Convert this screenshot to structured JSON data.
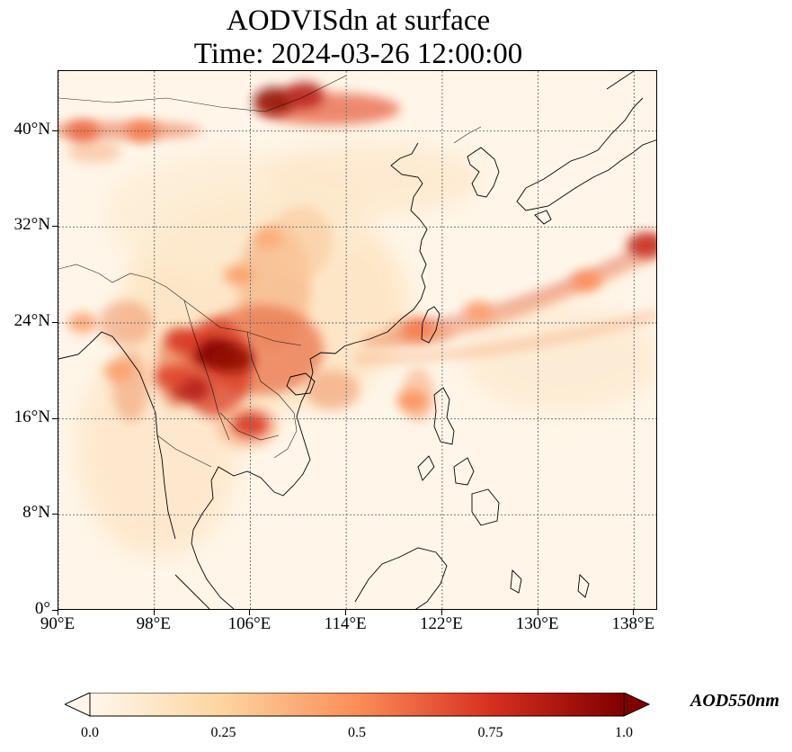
{
  "title": "AODVISdn at surface",
  "subtitle": "Time: 2024-03-26 12:00:00",
  "map": {
    "region": {
      "lon_min": 90,
      "lon_max": 140,
      "lat_min": 0,
      "lat_max": 45
    },
    "lat_labels": [
      "0°",
      "8°N",
      "16°N",
      "24°N",
      "32°N",
      "40°N"
    ],
    "lat_values": [
      0,
      8,
      16,
      24,
      32,
      40
    ],
    "lon_labels": [
      "90°E",
      "98°E",
      "106°E",
      "114°E",
      "122°E",
      "130°E",
      "138°E"
    ],
    "lon_values": [
      90,
      98,
      106,
      114,
      122,
      130,
      138
    ],
    "gridlines": true,
    "aod_hotspots": [
      {
        "lon": 103,
        "lat": 21.5,
        "aod": 1.0
      },
      {
        "lon": 104.5,
        "lat": 21.0,
        "aod": 0.95
      },
      {
        "lon": 101,
        "lat": 18.5,
        "aod": 0.85
      },
      {
        "lon": 99.5,
        "lat": 19.5,
        "aod": 0.7
      },
      {
        "lon": 106,
        "lat": 15.5,
        "aod": 0.75
      },
      {
        "lon": 100.5,
        "lat": 22.5,
        "aod": 0.75
      },
      {
        "lon": 108,
        "lat": 42.5,
        "aod": 0.95
      },
      {
        "lon": 110.5,
        "lat": 43.0,
        "aod": 0.85
      },
      {
        "lon": 105,
        "lat": 28,
        "aod": 0.45
      },
      {
        "lon": 107.5,
        "lat": 31,
        "aod": 0.4
      },
      {
        "lon": 92,
        "lat": 40,
        "aod": 0.6
      },
      {
        "lon": 97,
        "lat": 40,
        "aod": 0.55
      },
      {
        "lon": 125,
        "lat": 25,
        "aod": 0.45
      },
      {
        "lon": 134,
        "lat": 27.5,
        "aod": 0.5
      },
      {
        "lon": 139,
        "lat": 30.5,
        "aod": 0.8
      },
      {
        "lon": 120,
        "lat": 23.5,
        "aod": 0.55
      },
      {
        "lon": 119.5,
        "lat": 17.5,
        "aod": 0.5
      },
      {
        "lon": 92,
        "lat": 24,
        "aod": 0.45
      },
      {
        "lon": 95,
        "lat": 20,
        "aod": 0.45
      }
    ]
  },
  "colorbar": {
    "label": "AOD550nm",
    "ticks": [
      "0.0",
      "0.25",
      "0.5",
      "0.75",
      "1.0"
    ],
    "range": [
      0.0,
      1.0
    ],
    "colormap": "OrRd",
    "colors": [
      "#fff7ec",
      "#fdd49e",
      "#fc8d59",
      "#d7301f",
      "#7f0000"
    ]
  }
}
